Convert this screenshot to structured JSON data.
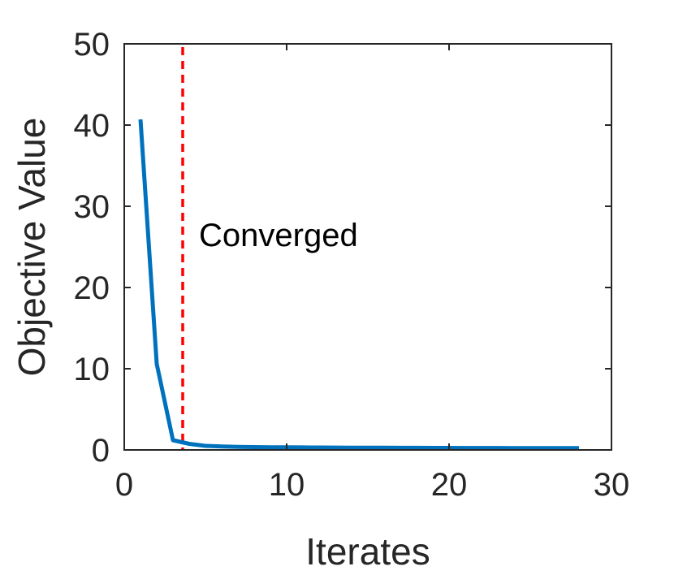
{
  "chart_data": {
    "type": "line",
    "title": "",
    "xlabel": "Iterates",
    "ylabel": "Objective Value",
    "xlim": [
      0,
      30
    ],
    "ylim": [
      0,
      50
    ],
    "xticks": [
      0,
      10,
      20,
      30
    ],
    "yticks": [
      0,
      10,
      20,
      30,
      40,
      50
    ],
    "grid": false,
    "legend": "none",
    "series": [
      {
        "color": "#0072BD",
        "x": [
          1,
          2,
          3,
          4,
          5,
          6,
          7,
          8,
          9,
          10,
          11,
          12,
          13,
          14,
          15,
          16,
          17,
          18,
          19,
          20,
          21,
          22,
          23,
          24,
          25,
          26,
          27,
          28
        ],
        "y": [
          40.7,
          10.6,
          1.2,
          0.75,
          0.5,
          0.42,
          0.38,
          0.35,
          0.33,
          0.32,
          0.31,
          0.3,
          0.29,
          0.28,
          0.27,
          0.27,
          0.26,
          0.26,
          0.25,
          0.25,
          0.24,
          0.24,
          0.24,
          0.23,
          0.23,
          0.23,
          0.22,
          0.22
        ]
      }
    ],
    "annotations": [
      {
        "type": "vline",
        "x": 3.6,
        "style": "dashed",
        "color": "#FF0000"
      },
      {
        "type": "text",
        "text": "Converged",
        "x": 4.6,
        "y": 26.5
      }
    ]
  }
}
